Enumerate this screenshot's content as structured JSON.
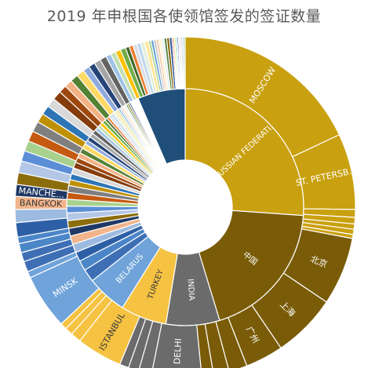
{
  "chart_data": {
    "type": "sunburst",
    "title": "2019 年申根国各使领馆签发的签证数量",
    "inner": [
      {
        "name": "RUSSIAN FEDERATI...",
        "value": 22.5,
        "color": "#C9A00F",
        "text_color": "#ffffff"
      },
      {
        "name": "中国",
        "value": 16.5,
        "color": "#7A5C08",
        "text_color": "#ffffff"
      },
      {
        "name": "INDIA",
        "value": 6.3,
        "color": "#6B6B6B",
        "text_color": "#ffffff"
      },
      {
        "name": "TURKEY",
        "value": 5.4,
        "color": "#F5C242",
        "text_color": "#3a3a3a"
      },
      {
        "name": "BELARUS",
        "value": 4.7,
        "color": "#6FA3D9",
        "text_color": "#ffffff"
      },
      {
        "name": "",
        "value": 1.5,
        "color": "#3E6FB5",
        "text_color": "#ffffff"
      },
      {
        "name": "",
        "value": 1.2,
        "color": "#4B86C8",
        "text_color": "#ffffff"
      },
      {
        "name": "",
        "value": 1.1,
        "color": "#2D5FA6",
        "text_color": "#ffffff"
      },
      {
        "name": "",
        "value": 1.0,
        "color": "#9DBBE0",
        "text_color": "#ffffff"
      },
      {
        "name": "",
        "value": 1.0,
        "color": "#F2B48A",
        "text_color": "#ffffff"
      },
      {
        "name": "",
        "value": 0.9,
        "color": "#1F3864",
        "text_color": "#ffffff"
      },
      {
        "name": "",
        "value": 0.9,
        "color": "#8C6D0B",
        "text_color": "#ffffff"
      },
      {
        "name": "",
        "value": 0.9,
        "color": "#B4C7E7",
        "text_color": "#ffffff"
      },
      {
        "name": "",
        "value": 0.8,
        "color": "#5B8ED6",
        "text_color": "#ffffff"
      },
      {
        "name": "",
        "value": 0.8,
        "color": "#A9D18E",
        "text_color": "#ffffff"
      },
      {
        "name": "",
        "value": 0.8,
        "color": "#C55A11",
        "text_color": "#ffffff"
      },
      {
        "name": "",
        "value": 0.8,
        "color": "#7F7F7F",
        "text_color": "#ffffff"
      },
      {
        "name": "",
        "value": 0.7,
        "color": "#BF9000",
        "text_color": "#ffffff"
      },
      {
        "name": "",
        "value": 0.7,
        "color": "#2E75B6",
        "text_color": "#ffffff"
      },
      {
        "name": "",
        "value": 0.7,
        "color": "#D9D9D9",
        "text_color": "#ffffff"
      },
      {
        "name": "",
        "value": 0.7,
        "color": "#843C0C",
        "text_color": "#ffffff"
      },
      {
        "name": "",
        "value": 0.6,
        "color": "#9E480E",
        "text_color": "#ffffff"
      },
      {
        "name": "",
        "value": 0.6,
        "color": "#F4B183",
        "text_color": "#ffffff"
      },
      {
        "name": "",
        "value": 0.6,
        "color": "#548235",
        "text_color": "#ffffff"
      },
      {
        "name": "",
        "value": 0.6,
        "color": "#FFD966",
        "text_color": "#ffffff"
      },
      {
        "name": "",
        "value": 0.5,
        "color": "#8FAADC",
        "text_color": "#ffffff"
      },
      {
        "name": "",
        "value": 0.5,
        "color": "#264478",
        "text_color": "#ffffff"
      },
      {
        "name": "",
        "value": 0.5,
        "color": "#A5A5A5",
        "text_color": "#ffffff"
      },
      {
        "name": "",
        "value": 0.5,
        "color": "#636363",
        "text_color": "#ffffff"
      },
      {
        "name": "",
        "value": 0.4,
        "color": "#9DC3E6",
        "text_color": "#ffffff"
      },
      {
        "name": "",
        "value": 0.4,
        "color": "#C5E0B4",
        "text_color": "#ffffff"
      },
      {
        "name": "",
        "value": 0.4,
        "color": "#FFC000",
        "text_color": "#ffffff"
      },
      {
        "name": "",
        "value": 0.4,
        "color": "#70AD47",
        "text_color": "#ffffff"
      },
      {
        "name": "",
        "value": 0.3,
        "color": "#43682B",
        "text_color": "#ffffff"
      },
      {
        "name": "",
        "value": 0.3,
        "color": "#ED7D31",
        "text_color": "#ffffff"
      },
      {
        "name": "",
        "value": 0.3,
        "color": "#D6DCE4",
        "text_color": "#ffffff"
      },
      {
        "name": "",
        "value": 0.3,
        "color": "#BDD7EE",
        "text_color": "#ffffff"
      },
      {
        "name": "",
        "value": 0.3,
        "color": "#E2EFDA",
        "text_color": "#ffffff"
      },
      {
        "name": "",
        "value": 0.3,
        "color": "#FFE699",
        "text_color": "#ffffff"
      },
      {
        "name": "",
        "value": 0.2,
        "color": "#A9D18E",
        "text_color": "#ffffff"
      },
      {
        "name": "",
        "value": 0.2,
        "color": "#5B9BD5",
        "text_color": "#ffffff"
      },
      {
        "name": "",
        "value": 0.2,
        "color": "#C9C9C9",
        "text_color": "#ffffff"
      },
      {
        "name": "",
        "value": 0.2,
        "color": "#F8CBAD",
        "text_color": "#ffffff"
      },
      {
        "name": "",
        "value": 0.2,
        "color": "#FFF2CC",
        "text_color": "#ffffff"
      },
      {
        "name": "",
        "value": 0.2,
        "color": "#DEEBF7",
        "text_color": "#ffffff"
      },
      {
        "name": "",
        "value": 0.2,
        "color": "#548235",
        "text_color": "#ffffff"
      },
      {
        "name": "",
        "value": 0.2,
        "color": "#7F6000",
        "text_color": "#ffffff"
      },
      {
        "name": "",
        "value": 0.2,
        "color": "#2F5597",
        "text_color": "#ffffff"
      },
      {
        "name": "",
        "value": 0.1,
        "color": "#C00000",
        "text_color": "#ffffff"
      },
      {
        "name": "",
        "value": 0.1,
        "color": "#FFC000",
        "text_color": "#ffffff"
      },
      {
        "name": "",
        "value": 0.1,
        "color": "#92D050",
        "text_color": "#ffffff"
      },
      {
        "name": "",
        "value": 0.1,
        "color": "#00B0F0",
        "text_color": "#ffffff"
      },
      {
        "name": "",
        "value": 0.1,
        "color": "#7030A0",
        "text_color": "#ffffff"
      },
      {
        "name": "",
        "value": 0.1,
        "color": "#BFBFBF",
        "text_color": "#ffffff"
      },
      {
        "name": "",
        "value": 0.1,
        "color": "#D0CECE",
        "text_color": "#ffffff"
      },
      {
        "name": "",
        "value": 0.1,
        "color": "#A6A6A6",
        "text_color": "#ffffff"
      },
      {
        "name": "",
        "value": 0.1,
        "color": "#5B9BD5",
        "text_color": "#ffffff"
      },
      {
        "name": "",
        "value": 0.1,
        "color": "#70AD47",
        "text_color": "#ffffff"
      },
      {
        "name": "",
        "value": 5.6,
        "color": "#1F4E79",
        "text_color": "#ffffff"
      }
    ],
    "outer": [
      {
        "name": "MOSCOW",
        "value": 14.5,
        "color": "#C9A00F",
        "text_color": "#ffffff"
      },
      {
        "name": "ST. PETERSB...",
        "value": 5.8,
        "color": "#C9A00F",
        "text_color": "#ffffff"
      },
      {
        "name": "",
        "value": 0.6,
        "color": "#C9A00F",
        "text_color": "#ffffff"
      },
      {
        "name": "",
        "value": 0.5,
        "color": "#C9A00F",
        "text_color": "#ffffff"
      },
      {
        "name": "",
        "value": 0.4,
        "color": "#C9A00F",
        "text_color": "#ffffff"
      },
      {
        "name": "",
        "value": 0.4,
        "color": "#C9A00F",
        "text_color": "#ffffff"
      },
      {
        "name": "",
        "value": 0.3,
        "color": "#C9A00F",
        "text_color": "#ffffff"
      },
      {
        "name": "北京",
        "value": 5.2,
        "color": "#7A5C08",
        "text_color": "#ffffff"
      },
      {
        "name": "上海",
        "value": 4.9,
        "color": "#7A5C08",
        "text_color": "#ffffff"
      },
      {
        "name": "广州",
        "value": 2.9,
        "color": "#7A5C08",
        "text_color": "#ffffff"
      },
      {
        "name": "",
        "value": 1.4,
        "color": "#7A5C08",
        "text_color": "#ffffff"
      },
      {
        "name": "",
        "value": 1.2,
        "color": "#7A5C08",
        "text_color": "#ffffff"
      },
      {
        "name": "",
        "value": 0.9,
        "color": "#7A5C08",
        "text_color": "#ffffff"
      },
      {
        "name": "DELHI",
        "value": 3.8,
        "color": "#6B6B6B",
        "text_color": "#ffffff"
      },
      {
        "name": "",
        "value": 1.0,
        "color": "#6B6B6B",
        "text_color": "#ffffff"
      },
      {
        "name": "",
        "value": 0.8,
        "color": "#6B6B6B",
        "text_color": "#ffffff"
      },
      {
        "name": "",
        "value": 0.7,
        "color": "#6B6B6B",
        "text_color": "#ffffff"
      },
      {
        "name": "ISTANBUL",
        "value": 3.5,
        "color": "#F5C242",
        "text_color": "#3a3a3a"
      },
      {
        "name": "",
        "value": 0.8,
        "color": "#F5C242",
        "text_color": "#3a3a3a"
      },
      {
        "name": "",
        "value": 0.6,
        "color": "#F5C242",
        "text_color": "#3a3a3a"
      },
      {
        "name": "",
        "value": 0.5,
        "color": "#F5C242",
        "text_color": "#3a3a3a"
      },
      {
        "name": "MINSK",
        "value": 4.2,
        "color": "#6FA3D9",
        "text_color": "#ffffff"
      },
      {
        "name": "",
        "value": 0.5,
        "color": "#6FA3D9",
        "text_color": "#ffffff"
      },
      {
        "name": "",
        "value": 0.8,
        "color": "#3E6FB5",
        "text_color": "#ffffff"
      },
      {
        "name": "",
        "value": 0.7,
        "color": "#3E6FB5",
        "text_color": "#ffffff"
      },
      {
        "name": "",
        "value": 0.7,
        "color": "#4B86C8",
        "text_color": "#ffffff"
      },
      {
        "name": "",
        "value": 0.5,
        "color": "#4B86C8",
        "text_color": "#ffffff"
      },
      {
        "name": "",
        "value": 1.1,
        "color": "#2D5FA6",
        "text_color": "#ffffff"
      },
      {
        "name": "",
        "value": 1.0,
        "color": "#9DBBE0",
        "text_color": "#ffffff"
      },
      {
        "name": "BANGKOK",
        "value": 1.0,
        "color": "#F2B48A",
        "text_color": "#3a3a3a"
      },
      {
        "name": "MANCHE...",
        "value": 0.9,
        "color": "#1F3864",
        "text_color": "#ffffff"
      },
      {
        "name": "",
        "value": 0.9,
        "color": "#8C6D0B",
        "text_color": "#ffffff"
      },
      {
        "name": "",
        "value": 0.9,
        "color": "#B4C7E7",
        "text_color": "#ffffff"
      },
      {
        "name": "",
        "value": 0.8,
        "color": "#5B8ED6",
        "text_color": "#ffffff"
      },
      {
        "name": "",
        "value": 0.8,
        "color": "#A9D18E",
        "text_color": "#ffffff"
      },
      {
        "name": "",
        "value": 0.8,
        "color": "#C55A11",
        "text_color": "#ffffff"
      },
      {
        "name": "",
        "value": 0.8,
        "color": "#7F7F7F",
        "text_color": "#ffffff"
      },
      {
        "name": "",
        "value": 0.7,
        "color": "#BF9000",
        "text_color": "#ffffff"
      },
      {
        "name": "",
        "value": 0.7,
        "color": "#2E75B6",
        "text_color": "#ffffff"
      },
      {
        "name": "",
        "value": 0.7,
        "color": "#D9D9D9",
        "text_color": "#ffffff"
      },
      {
        "name": "",
        "value": 0.7,
        "color": "#843C0C",
        "text_color": "#ffffff"
      },
      {
        "name": "",
        "value": 0.6,
        "color": "#9E480E",
        "text_color": "#ffffff"
      },
      {
        "name": "",
        "value": 0.6,
        "color": "#F4B183",
        "text_color": "#ffffff"
      },
      {
        "name": "",
        "value": 0.6,
        "color": "#548235",
        "text_color": "#ffffff"
      },
      {
        "name": "",
        "value": 0.6,
        "color": "#FFD966",
        "text_color": "#ffffff"
      },
      {
        "name": "",
        "value": 0.5,
        "color": "#8FAADC",
        "text_color": "#ffffff"
      },
      {
        "name": "",
        "value": 0.5,
        "color": "#264478",
        "text_color": "#ffffff"
      },
      {
        "name": "",
        "value": 0.5,
        "color": "#A5A5A5",
        "text_color": "#ffffff"
      },
      {
        "name": "",
        "value": 0.5,
        "color": "#636363",
        "text_color": "#ffffff"
      },
      {
        "name": "",
        "value": 0.4,
        "color": "#9DC3E6",
        "text_color": "#ffffff"
      },
      {
        "name": "",
        "value": 0.4,
        "color": "#C5E0B4",
        "text_color": "#ffffff"
      },
      {
        "name": "",
        "value": 0.4,
        "color": "#FFC000",
        "text_color": "#ffffff"
      },
      {
        "name": "",
        "value": 0.4,
        "color": "#70AD47",
        "text_color": "#ffffff"
      },
      {
        "name": "",
        "value": 0.3,
        "color": "#43682B",
        "text_color": "#ffffff"
      },
      {
        "name": "",
        "value": 0.3,
        "color": "#ED7D31",
        "text_color": "#ffffff"
      },
      {
        "name": "",
        "value": 0.3,
        "color": "#D6DCE4",
        "text_color": "#ffffff"
      },
      {
        "name": "",
        "value": 0.3,
        "color": "#BDD7EE",
        "text_color": "#ffffff"
      },
      {
        "name": "",
        "value": 0.3,
        "color": "#E2EFDA",
        "text_color": "#ffffff"
      },
      {
        "name": "",
        "value": 0.3,
        "color": "#FFE699",
        "text_color": "#ffffff"
      },
      {
        "name": "",
        "value": 0.2,
        "color": "#A9D18E",
        "text_color": "#ffffff"
      },
      {
        "name": "",
        "value": 0.2,
        "color": "#5B9BD5",
        "text_color": "#ffffff"
      },
      {
        "name": "",
        "value": 0.2,
        "color": "#C9C9C9",
        "text_color": "#ffffff"
      },
      {
        "name": "",
        "value": 0.2,
        "color": "#F8CBAD",
        "text_color": "#ffffff"
      },
      {
        "name": "",
        "value": 0.2,
        "color": "#FFF2CC",
        "text_color": "#ffffff"
      },
      {
        "name": "",
        "value": 0.2,
        "color": "#DEEBF7",
        "text_color": "#ffffff"
      },
      {
        "name": "",
        "value": 0.2,
        "color": "#548235",
        "text_color": "#ffffff"
      },
      {
        "name": "",
        "value": 0.2,
        "color": "#7F6000",
        "text_color": "#ffffff"
      },
      {
        "name": "",
        "value": 0.2,
        "color": "#2F5597",
        "text_color": "#ffffff"
      },
      {
        "name": "",
        "value": 0.1,
        "color": "#C00000",
        "text_color": "#ffffff"
      },
      {
        "name": "",
        "value": 0.1,
        "color": "#FFC000",
        "text_color": "#ffffff"
      },
      {
        "name": "",
        "value": 0.1,
        "color": "#92D050",
        "text_color": "#ffffff"
      },
      {
        "name": "",
        "value": 0.1,
        "color": "#00B0F0",
        "text_color": "#ffffff"
      },
      {
        "name": "",
        "value": 0.1,
        "color": "#7030A0",
        "text_color": "#ffffff"
      },
      {
        "name": "",
        "value": 0.1,
        "color": "#BFBFBF",
        "text_color": "#ffffff"
      },
      {
        "name": "",
        "value": 0.1,
        "color": "#D0CECE",
        "text_color": "#ffffff"
      },
      {
        "name": "",
        "value": 0.1,
        "color": "#A6A6A6",
        "text_color": "#ffffff"
      },
      {
        "name": "",
        "value": 0.1,
        "color": "#5B9BD5",
        "text_color": "#ffffff"
      },
      {
        "name": "",
        "value": 0.1,
        "color": "#70AD47",
        "text_color": "#ffffff"
      }
    ]
  }
}
